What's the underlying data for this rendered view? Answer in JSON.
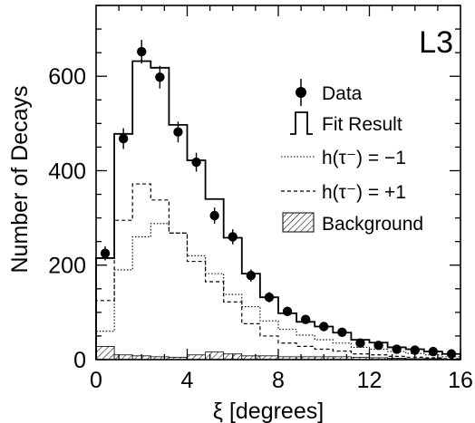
{
  "chart_data": {
    "type": "histogram",
    "experiment_label": "L3",
    "xlabel": "ξ  [degrees]",
    "ylabel": "Number of Decays",
    "xlim": [
      0,
      16
    ],
    "ylim": [
      0,
      750
    ],
    "x_ticks": [
      0,
      4,
      8,
      12,
      16
    ],
    "y_ticks": [
      0,
      200,
      400,
      600
    ],
    "bin_edges": [
      0,
      0.8,
      1.6,
      2.4,
      3.2,
      4.0,
      4.8,
      5.6,
      6.4,
      7.2,
      8.0,
      8.8,
      9.6,
      10.4,
      11.2,
      12.0,
      12.8,
      13.6,
      14.4,
      15.2,
      16.0
    ],
    "data": {
      "name": "Data",
      "x": [
        0.4,
        1.2,
        2.0,
        2.8,
        3.6,
        4.4,
        5.2,
        6.0,
        6.8,
        7.6,
        8.4,
        9.2,
        10.0,
        10.8,
        11.6,
        12.4,
        13.2,
        14.0,
        14.8,
        15.6
      ],
      "y": [
        225,
        468,
        652,
        598,
        482,
        418,
        305,
        260,
        178,
        132,
        102,
        85,
        70,
        58,
        35,
        30,
        22,
        20,
        17,
        12
      ],
      "yerr": [
        15,
        22,
        25,
        24,
        22,
        20,
        17,
        16,
        13,
        11,
        10,
        9,
        8,
        8,
        6,
        5,
        5,
        4,
        4,
        3
      ]
    },
    "series": [
      {
        "name": "Fit Result",
        "style": "solid",
        "values": [
          215,
          478,
          632,
          618,
          497,
          422,
          340,
          258,
          182,
          132,
          98,
          80,
          70,
          57,
          42,
          36,
          26,
          22,
          17,
          12
        ]
      },
      {
        "name": "h(τ⁻) = −1",
        "style": "dotted",
        "values": [
          60,
          190,
          260,
          288,
          268,
          220,
          182,
          138,
          112,
          82,
          64,
          52,
          42,
          35,
          26,
          22,
          17,
          13,
          10,
          6
        ]
      },
      {
        "name": "h(τ⁻) = +1",
        "style": "dashed",
        "values": [
          125,
          295,
          372,
          338,
          268,
          208,
          165,
          122,
          76,
          50,
          35,
          28,
          22,
          18,
          12,
          10,
          7,
          5,
          4,
          2
        ]
      },
      {
        "name": "Background",
        "style": "hatched",
        "values": [
          28,
          10,
          8,
          6,
          5,
          10,
          16,
          12,
          8,
          8,
          6,
          6,
          6,
          6,
          5,
          4,
          3,
          2,
          2,
          1
        ]
      }
    ]
  },
  "legend": [
    {
      "key": "data",
      "label": "Data"
    },
    {
      "key": "fit",
      "label": "Fit Result"
    },
    {
      "key": "minus",
      "label": "h(τ⁻) = −1"
    },
    {
      "key": "plus",
      "label": "h(τ⁻) = +1"
    },
    {
      "key": "bg",
      "label": "Background"
    }
  ]
}
